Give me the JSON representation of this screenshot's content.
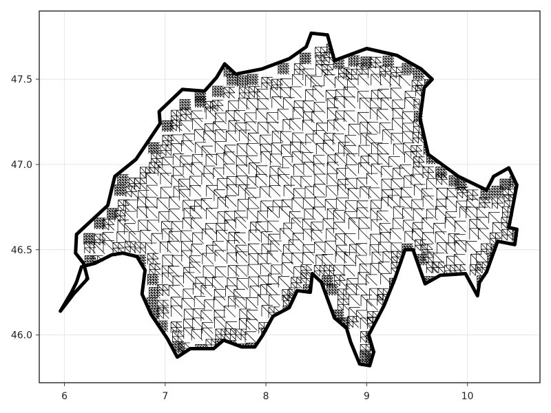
{
  "chart_data": {
    "type": "triangulated-mesh",
    "title": "",
    "xlabel": "",
    "ylabel": "",
    "xlim": [
      5.75,
      10.72
    ],
    "ylim": [
      45.72,
      47.9
    ],
    "grid": true,
    "xticks": [
      6,
      7,
      8,
      9,
      10
    ],
    "xtick_labels": [
      "6",
      "7",
      "8",
      "9",
      "10"
    ],
    "yticks": [
      46.0,
      46.5,
      47.0,
      47.5
    ],
    "ytick_labels": [
      "46.0",
      "46.5",
      "47.0",
      "47.5"
    ],
    "mesh_color": "#000000",
    "grid_color": "#e6e6e6",
    "frame_color": "#333333",
    "outline": [
      [
        5.96,
        46.14
      ],
      [
        6.07,
        46.25
      ],
      [
        6.12,
        46.31
      ],
      [
        6.17,
        46.4
      ],
      [
        6.3,
        46.42
      ],
      [
        6.47,
        46.47
      ],
      [
        6.58,
        46.48
      ],
      [
        6.72,
        46.46
      ],
      [
        6.8,
        46.38
      ],
      [
        6.77,
        46.24
      ],
      [
        6.86,
        46.12
      ],
      [
        7.02,
        45.98
      ],
      [
        7.12,
        45.87
      ],
      [
        7.25,
        45.92
      ],
      [
        7.48,
        45.92
      ],
      [
        7.58,
        45.97
      ],
      [
        7.76,
        45.93
      ],
      [
        7.89,
        45.93
      ],
      [
        7.97,
        46.0
      ],
      [
        8.07,
        46.11
      ],
      [
        8.23,
        46.16
      ],
      [
        8.31,
        46.26
      ],
      [
        8.44,
        46.25
      ],
      [
        8.46,
        46.36
      ],
      [
        8.55,
        46.31
      ],
      [
        8.68,
        46.1
      ],
      [
        8.8,
        46.04
      ],
      [
        8.84,
        45.96
      ],
      [
        8.93,
        45.83
      ],
      [
        9.03,
        45.82
      ],
      [
        9.07,
        45.9
      ],
      [
        9.02,
        46.0
      ],
      [
        9.17,
        46.17
      ],
      [
        9.28,
        46.33
      ],
      [
        9.38,
        46.5
      ],
      [
        9.46,
        46.5
      ],
      [
        9.58,
        46.3
      ],
      [
        9.73,
        46.35
      ],
      [
        9.98,
        46.36
      ],
      [
        10.1,
        46.23
      ],
      [
        10.12,
        46.31
      ],
      [
        10.19,
        46.37
      ],
      [
        10.3,
        46.55
      ],
      [
        10.47,
        46.53
      ],
      [
        10.49,
        46.62
      ],
      [
        10.41,
        46.63
      ],
      [
        10.49,
        46.88
      ],
      [
        10.41,
        46.98
      ],
      [
        10.26,
        46.93
      ],
      [
        10.19,
        46.85
      ],
      [
        9.91,
        46.93
      ],
      [
        9.61,
        47.06
      ],
      [
        9.53,
        47.27
      ],
      [
        9.57,
        47.45
      ],
      [
        9.65,
        47.5
      ],
      [
        9.54,
        47.56
      ],
      [
        9.3,
        47.64
      ],
      [
        9.0,
        47.68
      ],
      [
        8.68,
        47.61
      ],
      [
        8.61,
        47.76
      ],
      [
        8.45,
        47.77
      ],
      [
        8.4,
        47.69
      ],
      [
        8.23,
        47.62
      ],
      [
        7.96,
        47.56
      ],
      [
        7.7,
        47.53
      ],
      [
        7.59,
        47.59
      ],
      [
        7.51,
        47.51
      ],
      [
        7.39,
        47.43
      ],
      [
        7.17,
        47.44
      ],
      [
        6.94,
        47.31
      ],
      [
        6.95,
        47.24
      ],
      [
        6.71,
        47.03
      ],
      [
        6.5,
        46.93
      ],
      [
        6.43,
        46.76
      ],
      [
        6.12,
        46.59
      ],
      [
        6.11,
        46.48
      ],
      [
        6.19,
        46.42
      ],
      [
        6.23,
        46.33
      ],
      [
        6.09,
        46.24
      ],
      [
        5.96,
        46.14
      ]
    ]
  }
}
